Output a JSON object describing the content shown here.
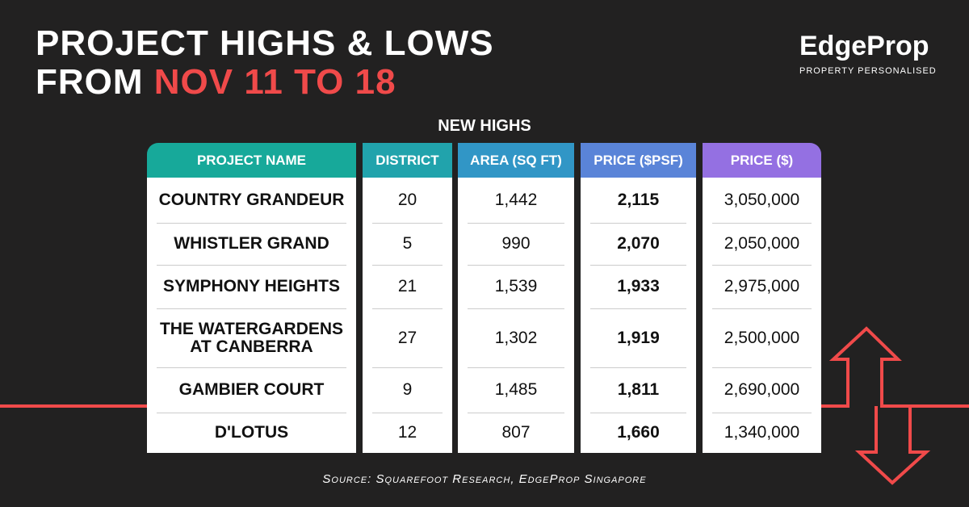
{
  "header": {
    "title_line1": "PROJECT HIGHS & LOWS",
    "title_line2_prefix": "FROM",
    "title_line2_highlight": "NOV 11 TO 18"
  },
  "logo": {
    "name": "EdgeProp",
    "tagline": "PROPERTY PERSONALISED"
  },
  "table": {
    "title": "NEW HIGHS",
    "columns": [
      "PROJECT NAME",
      "DISTRICT",
      "AREA (SQ FT)",
      "PRICE ($PSF)",
      "PRICE ($)"
    ],
    "rows": [
      [
        "COUNTRY GRANDEUR",
        "20",
        "1,442",
        "2,115",
        "3,050,000"
      ],
      [
        "WHISTLER GRAND",
        "5",
        "990",
        "2,070",
        "2,050,000"
      ],
      [
        "SYMPHONY HEIGHTS",
        "21",
        "1,539",
        "1,933",
        "2,975,000"
      ],
      [
        "THE WATERGARDENS AT CANBERRA",
        "27",
        "1,302",
        "1,919",
        "2,500,000"
      ],
      [
        "GAMBIER COURT",
        "9",
        "1,485",
        "1,811",
        "2,690,000"
      ],
      [
        "D'LOTUS",
        "12",
        "807",
        "1,660",
        "1,340,000"
      ]
    ]
  },
  "source": "Source: Squarefoot Research, EdgeProp Singapore"
}
